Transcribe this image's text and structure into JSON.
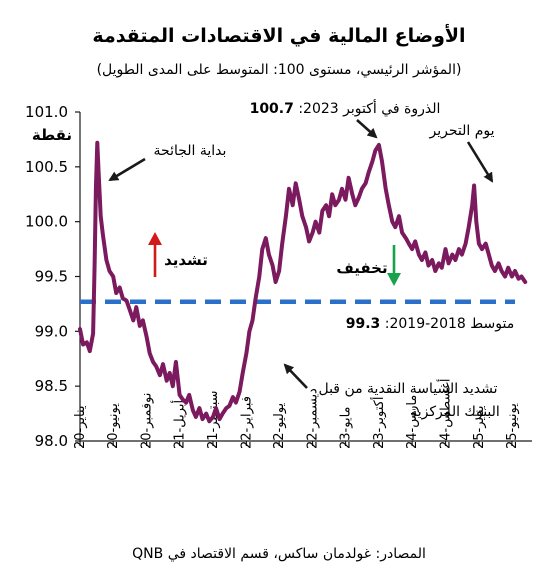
{
  "chart_data": {
    "type": "line",
    "title": "الأوضاع المالية في الاقتصادات المتقدمة",
    "subtitle": "(المؤشر الرئيسي، مستوى 100: المتوسط على المدى الطويل)",
    "ylabel": "نقطة",
    "ylim": [
      98.0,
      101.0
    ],
    "yticks": [
      "101.0",
      "100.5",
      "100.0",
      "99.5",
      "99.0",
      "98.5",
      "98.0"
    ],
    "xlim": [
      "2020-01",
      "2025-09"
    ],
    "xticks": [
      {
        "label": "يناير-20",
        "date": "2020-01"
      },
      {
        "label": "يونيو-20",
        "date": "2020-06"
      },
      {
        "label": "نوفمبر-20",
        "date": "2020-11"
      },
      {
        "label": "أبريل-21",
        "date": "2021-04"
      },
      {
        "label": "سبتمبر-21",
        "date": "2021-09"
      },
      {
        "label": "فبراير-22",
        "date": "2022-02"
      },
      {
        "label": "يوليو-22",
        "date": "2022-07"
      },
      {
        "label": "ديسمبر-22",
        "date": "2022-12"
      },
      {
        "label": "مايو-23",
        "date": "2023-05"
      },
      {
        "label": "أكتوبر-23",
        "date": "2023-10"
      },
      {
        "label": "مارس-24",
        "date": "2024-03"
      },
      {
        "label": "أغسطس-24",
        "date": "2024-08"
      },
      {
        "label": "يناير-25",
        "date": "2025-01"
      },
      {
        "label": "يونيو-25",
        "date": "2025-06"
      }
    ],
    "series": [
      {
        "color": "#7b1a5e",
        "points": [
          [
            "2020-01-01",
            99.02
          ],
          [
            "2020-01-15",
            98.88
          ],
          [
            "2020-02-01",
            98.9
          ],
          [
            "2020-02-15",
            98.82
          ],
          [
            "2020-03-01",
            98.98
          ],
          [
            "2020-03-08",
            99.6
          ],
          [
            "2020-03-14",
            100.3
          ],
          [
            "2020-03-20",
            100.72
          ],
          [
            "2020-03-26",
            100.45
          ],
          [
            "2020-04-05",
            100.05
          ],
          [
            "2020-04-15",
            99.88
          ],
          [
            "2020-05-01",
            99.65
          ],
          [
            "2020-05-15",
            99.55
          ],
          [
            "2020-06-01",
            99.5
          ],
          [
            "2020-06-15",
            99.35
          ],
          [
            "2020-07-01",
            99.4
          ],
          [
            "2020-07-15",
            99.3
          ],
          [
            "2020-08-01",
            99.28
          ],
          [
            "2020-08-15",
            99.2
          ],
          [
            "2020-09-01",
            99.1
          ],
          [
            "2020-09-15",
            99.22
          ],
          [
            "2020-10-01",
            99.05
          ],
          [
            "2020-10-15",
            99.1
          ],
          [
            "2020-11-01",
            98.95
          ],
          [
            "2020-11-15",
            98.8
          ],
          [
            "2020-12-01",
            98.72
          ],
          [
            "2020-12-15",
            98.68
          ],
          [
            "2021-01-01",
            98.6
          ],
          [
            "2021-01-15",
            98.7
          ],
          [
            "2021-02-01",
            98.55
          ],
          [
            "2021-02-15",
            98.62
          ],
          [
            "2021-03-01",
            98.5
          ],
          [
            "2021-03-15",
            98.72
          ],
          [
            "2021-04-01",
            98.42
          ],
          [
            "2021-04-15",
            98.38
          ],
          [
            "2021-05-01",
            98.35
          ],
          [
            "2021-05-15",
            98.42
          ],
          [
            "2021-06-01",
            98.28
          ],
          [
            "2021-06-15",
            98.22
          ],
          [
            "2021-07-01",
            98.3
          ],
          [
            "2021-07-15",
            98.2
          ],
          [
            "2021-08-01",
            98.25
          ],
          [
            "2021-08-15",
            98.18
          ],
          [
            "2021-09-01",
            98.22
          ],
          [
            "2021-09-15",
            98.3
          ],
          [
            "2021-10-01",
            98.2
          ],
          [
            "2021-10-15",
            98.25
          ],
          [
            "2021-11-01",
            98.3
          ],
          [
            "2021-11-15",
            98.32
          ],
          [
            "2021-12-01",
            98.4
          ],
          [
            "2021-12-15",
            98.35
          ],
          [
            "2022-01-01",
            98.45
          ],
          [
            "2022-01-15",
            98.62
          ],
          [
            "2022-02-01",
            98.8
          ],
          [
            "2022-02-15",
            99.0
          ],
          [
            "2022-03-01",
            99.1
          ],
          [
            "2022-03-15",
            99.3
          ],
          [
            "2022-04-01",
            99.5
          ],
          [
            "2022-04-15",
            99.75
          ],
          [
            "2022-05-01",
            99.85
          ],
          [
            "2022-05-15",
            99.7
          ],
          [
            "2022-06-01",
            99.6
          ],
          [
            "2022-06-15",
            99.45
          ],
          [
            "2022-07-01",
            99.55
          ],
          [
            "2022-07-15",
            99.8
          ],
          [
            "2022-08-01",
            100.05
          ],
          [
            "2022-08-15",
            100.3
          ],
          [
            "2022-09-01",
            100.15
          ],
          [
            "2022-09-15",
            100.35
          ],
          [
            "2022-10-01",
            100.2
          ],
          [
            "2022-10-15",
            100.05
          ],
          [
            "2022-11-01",
            99.95
          ],
          [
            "2022-11-15",
            99.82
          ],
          [
            "2022-12-01",
            99.9
          ],
          [
            "2022-12-15",
            100.0
          ],
          [
            "2023-01-01",
            99.9
          ],
          [
            "2023-01-15",
            100.1
          ],
          [
            "2023-02-01",
            100.15
          ],
          [
            "2023-02-15",
            100.05
          ],
          [
            "2023-03-01",
            100.25
          ],
          [
            "2023-03-15",
            100.15
          ],
          [
            "2023-04-01",
            100.2
          ],
          [
            "2023-04-15",
            100.3
          ],
          [
            "2023-05-01",
            100.2
          ],
          [
            "2023-05-15",
            100.4
          ],
          [
            "2023-06-01",
            100.25
          ],
          [
            "2023-06-15",
            100.15
          ],
          [
            "2023-07-01",
            100.22
          ],
          [
            "2023-07-15",
            100.3
          ],
          [
            "2023-08-01",
            100.35
          ],
          [
            "2023-08-15",
            100.45
          ],
          [
            "2023-09-01",
            100.55
          ],
          [
            "2023-09-15",
            100.65
          ],
          [
            "2023-10-01",
            100.7
          ],
          [
            "2023-10-15",
            100.55
          ],
          [
            "2023-11-01",
            100.3
          ],
          [
            "2023-11-15",
            100.15
          ],
          [
            "2023-12-01",
            100.0
          ],
          [
            "2023-12-15",
            99.95
          ],
          [
            "2024-01-01",
            100.05
          ],
          [
            "2024-01-15",
            99.9
          ],
          [
            "2024-02-01",
            99.85
          ],
          [
            "2024-02-15",
            99.8
          ],
          [
            "2024-03-01",
            99.75
          ],
          [
            "2024-03-15",
            99.82
          ],
          [
            "2024-04-01",
            99.7
          ],
          [
            "2024-04-15",
            99.65
          ],
          [
            "2024-05-01",
            99.72
          ],
          [
            "2024-05-15",
            99.6
          ],
          [
            "2024-06-01",
            99.65
          ],
          [
            "2024-06-15",
            99.55
          ],
          [
            "2024-07-01",
            99.62
          ],
          [
            "2024-07-15",
            99.58
          ],
          [
            "2024-08-01",
            99.75
          ],
          [
            "2024-08-15",
            99.62
          ],
          [
            "2024-09-01",
            99.7
          ],
          [
            "2024-09-15",
            99.65
          ],
          [
            "2024-10-01",
            99.75
          ],
          [
            "2024-10-15",
            99.7
          ],
          [
            "2024-11-01",
            99.8
          ],
          [
            "2024-11-15",
            99.95
          ],
          [
            "2024-12-01",
            100.15
          ],
          [
            "2024-12-10",
            100.33
          ],
          [
            "2024-12-20",
            100.0
          ],
          [
            "2025-01-01",
            99.8
          ],
          [
            "2025-01-15",
            99.75
          ],
          [
            "2025-02-01",
            99.8
          ],
          [
            "2025-02-15",
            99.7
          ],
          [
            "2025-03-01",
            99.6
          ],
          [
            "2025-03-15",
            99.55
          ],
          [
            "2025-04-01",
            99.62
          ],
          [
            "2025-04-15",
            99.55
          ],
          [
            "2025-05-01",
            99.5
          ],
          [
            "2025-05-15",
            99.58
          ],
          [
            "2025-06-01",
            99.5
          ],
          [
            "2025-06-15",
            99.55
          ],
          [
            "2025-07-01",
            99.48
          ],
          [
            "2025-07-15",
            99.5
          ],
          [
            "2025-08-01",
            99.45
          ]
        ]
      }
    ],
    "reference_line": {
      "value": 99.27,
      "color": "#2a6fc9",
      "style": "dashed"
    },
    "annotations": {
      "peak": {
        "prefix": "الذروة في أكتوبر 2023: ",
        "value": "100.7"
      },
      "pandemic": "بداية الجائحة",
      "liberation": "يوم التحرير",
      "tightening_label": "تشديد",
      "easing_label": "تخفيف",
      "average": {
        "prefix": "متوسط 2018-2019: ",
        "value": "99.3"
      },
      "policy_line1": "تشديد السياسة النقدية من قبل",
      "policy_line2": "البنوك المركزية"
    },
    "colors": {
      "line": "#7b1a5e",
      "tightening_arrow": "#d11a1a",
      "easing_arrow": "#17a34a",
      "reference": "#2a6fc9"
    },
    "source": "المصادر: غولدمان ساكس، قسم الاقتصاد في QNB"
  }
}
